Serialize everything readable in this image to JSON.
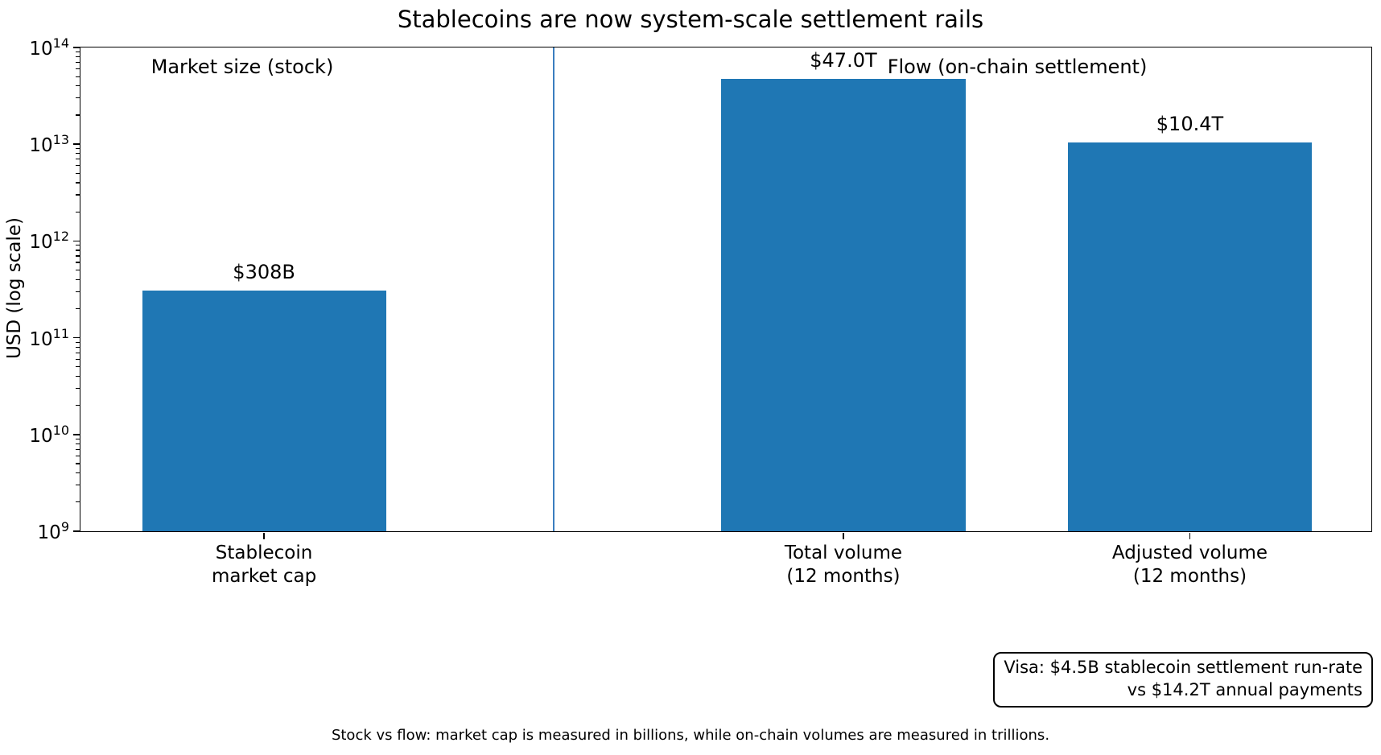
{
  "title": "Stablecoins are now system-scale settlement rails",
  "chart_data": {
    "type": "bar",
    "title": "Stablecoins are now system-scale settlement rails",
    "ylabel": "USD (log scale)",
    "yscale": "log",
    "ylim": [
      1000000000,
      100000000000000
    ],
    "ytick_exponents": [
      9,
      10,
      11,
      12,
      13,
      14
    ],
    "grid": false,
    "legend": "none",
    "categories": [
      "Stablecoin\nmarket cap",
      "Total volume\n(12 months)",
      "Adjusted volume\n(12 months)"
    ],
    "values": [
      308000000000,
      47000000000000,
      10400000000000
    ],
    "bar_value_labels": [
      "$308B",
      "$47.0T",
      "$10.4T"
    ],
    "bar_color": "#1f77b4",
    "divider_color": "#3a7ebf",
    "group_labels": [
      {
        "text": "Market size (stock)"
      },
      {
        "text": "Flow (on-chain settlement)"
      }
    ],
    "annotation_box": {
      "lines": [
        "Visa: $4.5B stablecoin settlement run-rate",
        "vs $14.2T annual payments"
      ]
    },
    "caption": "Stock vs flow: market cap is measured in billions, while on-chain volumes are measured in trillions."
  }
}
